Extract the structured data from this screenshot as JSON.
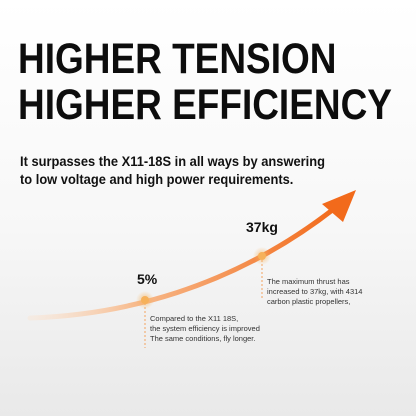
{
  "headline": {
    "line1": "HIGHER TENSION",
    "line2": "HIGHER EFFICIENCY"
  },
  "subtitle": {
    "line1": "It surpasses the X11-18S in all ways by answering",
    "line2": "to low voltage and high power requirements."
  },
  "points": [
    {
      "value": "5%",
      "note": [
        "Compared to the X11 18S,",
        "the system efficiency is improved",
        "The same conditions, fly longer."
      ]
    },
    {
      "value": "37kg",
      "note": [
        "The maximum thrust has",
        "increased to 37kg, with 4314",
        "carbon plastic propellers,"
      ]
    }
  ],
  "colors": {
    "accent": "#f26a1b",
    "accent_light": "#f7c39b",
    "point": "#f6b15a"
  }
}
